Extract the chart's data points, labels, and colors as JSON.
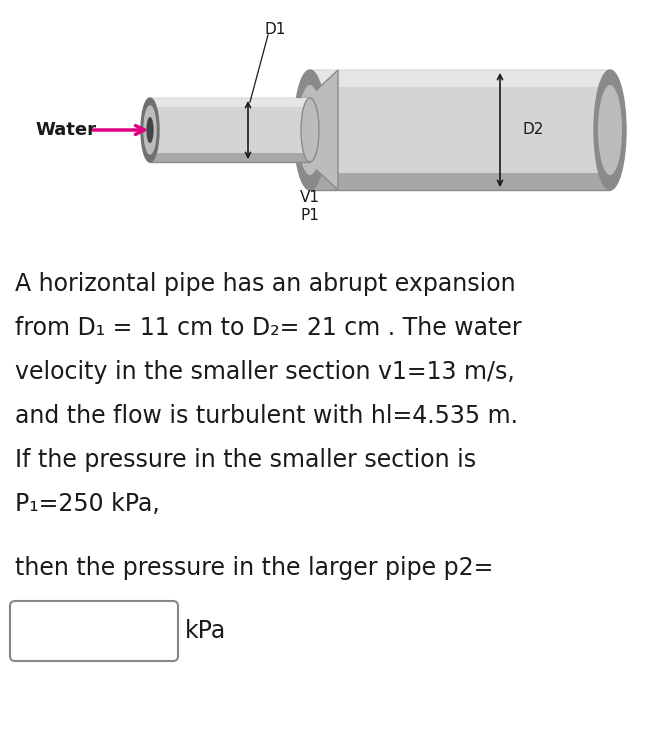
{
  "bg_color": "#ffffff",
  "text_color": "#1a1a1a",
  "pipe_light": "#d4d4d4",
  "pipe_mid": "#bcbcbc",
  "pipe_dark": "#8a8a8a",
  "pipe_darker": "#707070",
  "pipe_highlight": "#e8e8e8",
  "arrow_color": "#e0007f",
  "water_label": "Water",
  "d1_label": "D1",
  "d2_label": "D2",
  "v1_label": "V1",
  "p1_label": "P1",
  "line1": "A horizontal pipe has an abrupt expansion",
  "line2": "from D₁ = 11 cm to D₂= 21 cm . The water",
  "line3": "velocity in the smaller section v1=13 m/s,",
  "line4": "and the flow is turbulent with hl=4.535 m.",
  "line5": "If the pressure in the smaller section is",
  "line6": "P₁=250 kPa,",
  "line7": "then the pressure in the larger pipe p2=",
  "line8": "kPa",
  "fig_width": 6.67,
  "fig_height": 7.42,
  "dpi": 100
}
